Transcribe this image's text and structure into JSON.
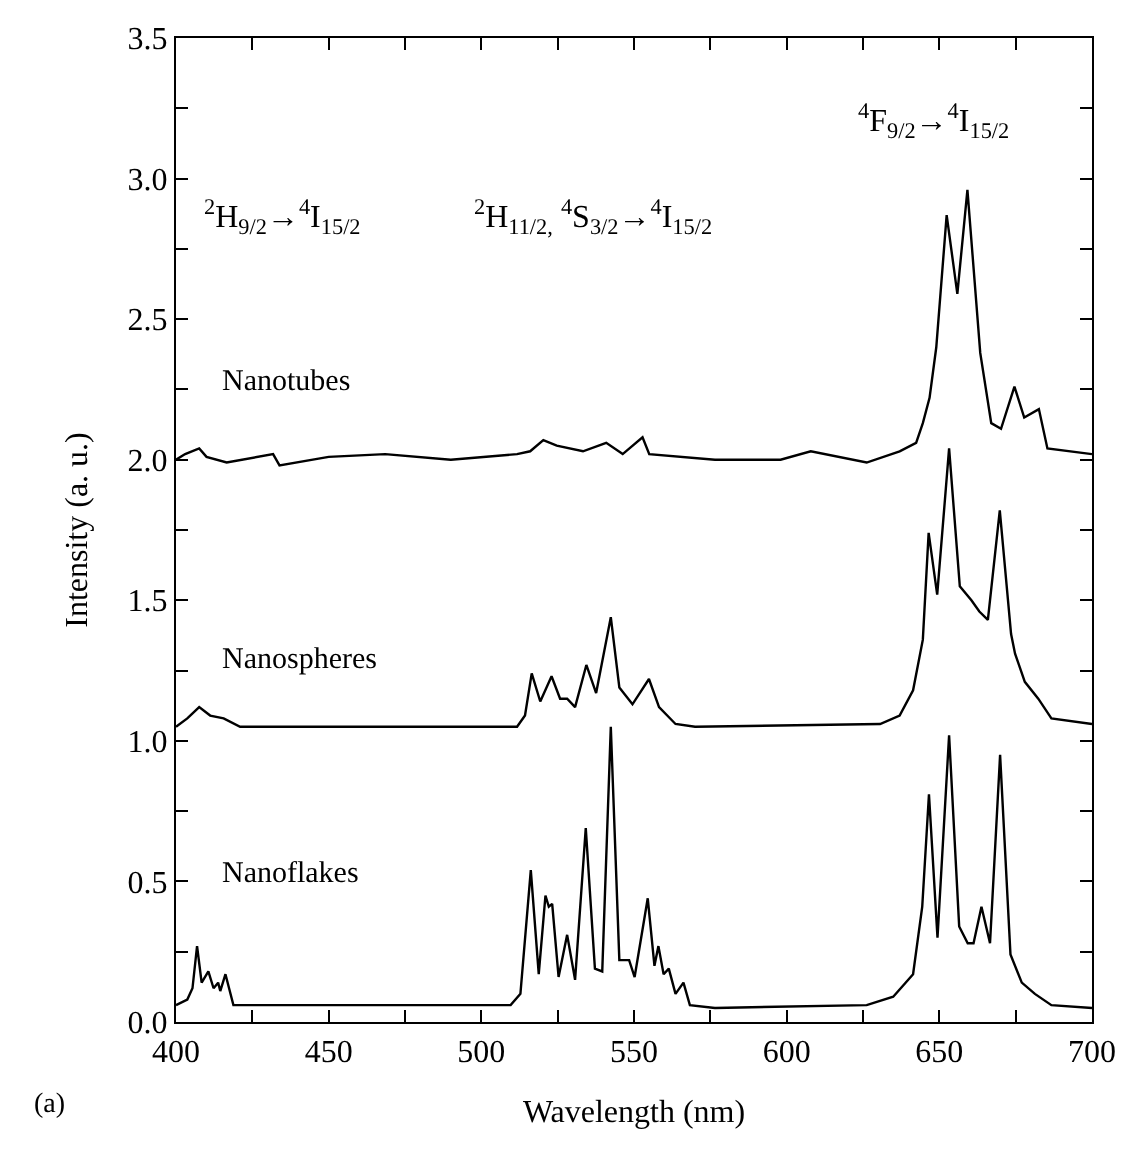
{
  "chart_data": {
    "type": "line",
    "xlabel": "Wavelength (nm)",
    "ylabel": "Intensity (a. u.)",
    "xlim": [
      400,
      700
    ],
    "ylim": [
      0,
      3.5
    ],
    "xticks": [
      400,
      {
        "value": 425,
        "label": null
      },
      450,
      {
        "value": 475,
        "label": null
      },
      500,
      {
        "value": 525,
        "label": null
      },
      550,
      {
        "value": 575,
        "label": null
      },
      600,
      {
        "value": 625,
        "label": null
      },
      650,
      {
        "value": 675,
        "label": null
      },
      700
    ],
    "yticks": [
      {
        "value": 0,
        "label": "0.0"
      },
      {
        "value": 0.25,
        "label": null
      },
      {
        "value": 0.5,
        "label": "0.5"
      },
      {
        "value": 0.75,
        "label": null
      },
      {
        "value": 1,
        "label": "1.0"
      },
      {
        "value": 1.25,
        "label": null
      },
      {
        "value": 1.5,
        "label": "1.5"
      },
      {
        "value": 1.75,
        "label": null
      },
      {
        "value": 2,
        "label": "2.0"
      },
      {
        "value": 2.25,
        "label": null
      },
      {
        "value": 2.5,
        "label": "2.5"
      },
      {
        "value": 2.75,
        "label": null
      },
      {
        "value": 3,
        "label": "3.0"
      },
      {
        "value": 3.25,
        "label": null
      },
      {
        "value": 3.5,
        "label": "3.5"
      }
    ],
    "grid": false,
    "legend": false,
    "marker": "none",
    "line_style": "solid",
    "series": [
      {
        "name": "Nanotubes",
        "color": "#000000",
        "x": [
          400,
          403,
          407.6,
          410,
          416.6,
          431.8,
          433.9,
          450,
          468.5,
          490,
          511.7,
          516,
          520.3,
          524.7,
          533.3,
          540.9,
          546.3,
          552.8,
          555,
          576.5,
          598,
          607.9,
          626.2,
          637,
          642.4,
          644.6,
          646.8,
          649,
          652.4,
          655.9,
          659.2,
          663.4,
          667,
          670.2,
          674.6,
          677.8,
          682.6,
          685.4,
          700
        ],
        "values": [
          2.0,
          2.02,
          2.04,
          2.01,
          1.99,
          2.02,
          1.98,
          2.01,
          2.02,
          2.0,
          2.02,
          2.03,
          2.07,
          2.05,
          2.03,
          2.06,
          2.02,
          2.08,
          2.02,
          2.0,
          2.0,
          2.03,
          1.99,
          2.03,
          2.06,
          2.13,
          2.22,
          2.4,
          2.87,
          2.59,
          2.96,
          2.38,
          2.13,
          2.11,
          2.26,
          2.15,
          2.18,
          2.04,
          2.02
        ]
      },
      {
        "name": "Nanospheres",
        "color": "#000000",
        "x": [
          400,
          403.7,
          407.6,
          411.2,
          415.6,
          421,
          511.7,
          514.3,
          516.5,
          519.3,
          523,
          525.8,
          528.1,
          530.7,
          534.4,
          537.6,
          542.4,
          545.2,
          549.5,
          554.9,
          558.2,
          563.6,
          570,
          630.6,
          637,
          641.4,
          644.6,
          646.5,
          649.3,
          653.2,
          656.7,
          660.5,
          663.1,
          665.9,
          669.8,
          673.5,
          674.8,
          678,
          682.4,
          686.7,
          700
        ],
        "values": [
          1.05,
          1.08,
          1.12,
          1.09,
          1.08,
          1.05,
          1.05,
          1.09,
          1.24,
          1.14,
          1.23,
          1.15,
          1.15,
          1.12,
          1.27,
          1.17,
          1.44,
          1.19,
          1.13,
          1.22,
          1.12,
          1.06,
          1.05,
          1.06,
          1.09,
          1.18,
          1.36,
          1.74,
          1.52,
          2.04,
          1.55,
          1.5,
          1.46,
          1.43,
          1.82,
          1.38,
          1.31,
          1.21,
          1.15,
          1.08,
          1.06
        ]
      },
      {
        "name": "Nanoflakes",
        "color": "#000000",
        "x": [
          400,
          403.7,
          405.4,
          406.9,
          408.4,
          410.6,
          412.3,
          413.8,
          414.5,
          416.2,
          418.8,
          425.3,
          509.6,
          512.8,
          516.2,
          518.8,
          521,
          522.1,
          523.2,
          525.3,
          528.1,
          530.7,
          534.2,
          537.2,
          539.6,
          542.4,
          545.2,
          548.4,
          550.2,
          554.5,
          556.7,
          558,
          559.7,
          561.4,
          563.6,
          566.2,
          568.3,
          576.5,
          626.2,
          634.9,
          641.4,
          644.4,
          646.6,
          649.4,
          653.2,
          656.5,
          659.3,
          661.2,
          663.8,
          666.6,
          669.9,
          673.3,
          677,
          681.3,
          686.7,
          700
        ],
        "values": [
          0.06,
          0.08,
          0.12,
          0.27,
          0.14,
          0.18,
          0.12,
          0.14,
          0.11,
          0.17,
          0.06,
          0.06,
          0.06,
          0.1,
          0.54,
          0.17,
          0.45,
          0.41,
          0.42,
          0.16,
          0.31,
          0.15,
          0.69,
          0.19,
          0.18,
          1.05,
          0.22,
          0.22,
          0.16,
          0.44,
          0.2,
          0.27,
          0.17,
          0.19,
          0.1,
          0.14,
          0.06,
          0.05,
          0.06,
          0.09,
          0.17,
          0.41,
          0.81,
          0.3,
          1.02,
          0.34,
          0.28,
          0.28,
          0.41,
          0.28,
          0.95,
          0.24,
          0.14,
          0.1,
          0.06,
          0.05
        ]
      }
    ],
    "annotations": [
      "$^{2}$H$_{9/2}$→$^{4}$I$_{15/2}$",
      "$^{2}$H$_{11/2,}$ $^{4}$S$_{3/2}$→$^{4}$I$_{15/2}$",
      "$^{4}$F$_{9/2}$→$^{4}$I$_{15/2}$",
      "(a)"
    ]
  }
}
